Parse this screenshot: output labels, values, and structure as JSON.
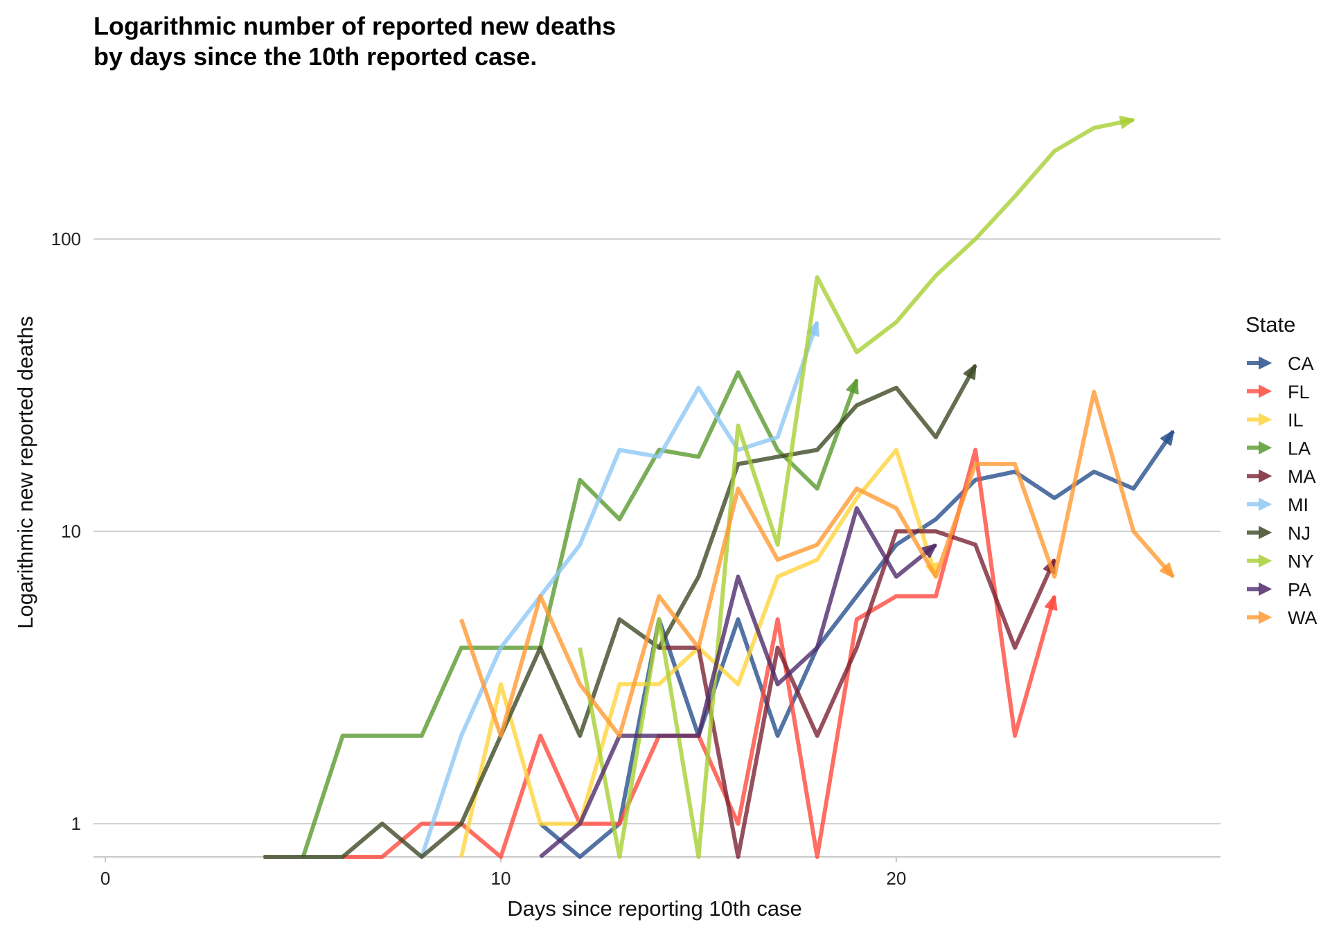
{
  "chart_data": {
    "type": "line",
    "title_lines": [
      "Logarithmic number of reported new deaths",
      "by days since the 10th reported case."
    ],
    "xlabel": "Days since reporting 10th case",
    "ylabel": "Logarithmic new reported deaths",
    "x_scale": "linear",
    "y_scale": "log10",
    "xlim": [
      -0.3,
      28.2
    ],
    "ylim": [
      0.77,
      290
    ],
    "x_ticks": [
      0,
      10,
      20
    ],
    "x_tick_labels": [
      "0",
      "10",
      "20"
    ],
    "y_ticks": [
      1,
      10,
      100
    ],
    "y_tick_labels": [
      "1",
      "10",
      "100"
    ],
    "grid": "horizontal major lines",
    "legend": {
      "title": "State",
      "position": "right"
    },
    "series": [
      {
        "name": "CA",
        "color": "#27508C",
        "x": [
          11,
          12,
          13,
          14,
          15,
          16,
          17,
          18,
          19,
          20,
          21,
          22,
          23,
          24,
          25,
          26,
          27
        ],
        "y": [
          1,
          0.77,
          1,
          5,
          2,
          5,
          2,
          4,
          6,
          9,
          11,
          15,
          16,
          13,
          16,
          14,
          22
        ]
      },
      {
        "name": "FL",
        "color": "#FF4A3D",
        "x": [
          6,
          7,
          8,
          9,
          10,
          11,
          12,
          13,
          14,
          15,
          16,
          17,
          18,
          19,
          20,
          21,
          22,
          23,
          24
        ],
        "y": [
          0.77,
          0.77,
          1,
          1,
          0.77,
          2,
          1,
          1,
          2,
          2,
          1,
          5,
          0.77,
          5,
          6,
          6,
          19,
          2,
          6
        ]
      },
      {
        "name": "IL",
        "color": "#FFD43D",
        "x": [
          9,
          10,
          11,
          12,
          13,
          14,
          15,
          16,
          17,
          18,
          19,
          20,
          21
        ],
        "y": [
          0.77,
          3,
          1,
          1,
          3,
          3,
          4,
          3,
          7,
          8,
          13,
          19,
          7
        ]
      },
      {
        "name": "LA",
        "color": "#5A9A2E",
        "x": [
          5,
          6,
          7,
          8,
          9,
          10,
          11,
          12,
          13,
          14,
          15,
          16,
          17,
          18,
          19
        ],
        "y": [
          0.77,
          2,
          2,
          2,
          4,
          4,
          4,
          15,
          11,
          19,
          18,
          35,
          19,
          14,
          33
        ]
      },
      {
        "name": "MA",
        "color": "#7C2335",
        "x": [
          14,
          15,
          16,
          17,
          18,
          19,
          20,
          21,
          22,
          23,
          24
        ],
        "y": [
          4,
          4,
          0.77,
          4,
          2,
          4,
          10,
          10,
          9,
          4,
          8
        ]
      },
      {
        "name": "MI",
        "color": "#8EC8F5",
        "x": [
          8,
          9,
          10,
          11,
          12,
          13,
          14,
          15,
          16,
          17,
          18
        ],
        "y": [
          0.77,
          2,
          4,
          6,
          9,
          19,
          18,
          31,
          19,
          21,
          52
        ]
      },
      {
        "name": "NJ",
        "color": "#3F4A26",
        "x": [
          4,
          5,
          6,
          7,
          8,
          9,
          10,
          11,
          12,
          13,
          14,
          15,
          16,
          17,
          18,
          19,
          20,
          21,
          22
        ],
        "y": [
          0.77,
          0.77,
          0.77,
          1,
          0.77,
          1,
          2,
          4,
          2,
          5,
          4,
          7,
          17,
          18,
          19,
          27,
          31,
          21,
          37
        ]
      },
      {
        "name": "NY",
        "color": "#A8CF35",
        "x": [
          12,
          13,
          14,
          15,
          16,
          17,
          18,
          19,
          20,
          21,
          22,
          23,
          24,
          25,
          26
        ],
        "y": [
          4,
          0.77,
          5,
          0.77,
          23,
          9,
          74,
          41,
          52,
          75,
          100,
          140,
          200,
          240,
          256
        ]
      },
      {
        "name": "PA",
        "color": "#4F2A6B",
        "x": [
          11,
          12,
          13,
          14,
          15,
          16,
          17,
          18,
          19,
          20,
          21
        ],
        "y": [
          0.77,
          1,
          2,
          2,
          2,
          7,
          3,
          4,
          12,
          7,
          9
        ]
      },
      {
        "name": "WA",
        "color": "#FF9A32",
        "x": [
          9,
          10,
          11,
          12,
          13,
          14,
          15,
          16,
          17,
          18,
          19,
          20,
          21,
          22,
          23,
          24,
          25,
          26,
          27
        ],
        "y": [
          5,
          2,
          6,
          3,
          2,
          6,
          4,
          14,
          8,
          9,
          14,
          12,
          7,
          17,
          17,
          7,
          30,
          10,
          7
        ]
      }
    ]
  }
}
